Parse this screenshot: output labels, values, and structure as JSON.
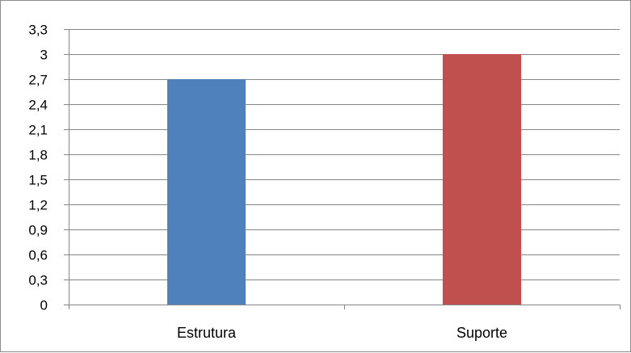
{
  "chart_data": {
    "type": "bar",
    "categories": [
      "Estrutura",
      "Suporte"
    ],
    "values": [
      2.7,
      3.0
    ],
    "colors": [
      "#4f81bd",
      "#c0504d"
    ],
    "ylim": [
      0,
      3.3
    ],
    "yticks": [
      "0",
      "0,3",
      "0,6",
      "0,9",
      "1,2",
      "1,5",
      "1,8",
      "2,1",
      "2,4",
      "2,7",
      "3",
      "3,3"
    ],
    "ytick_values": [
      0,
      0.3,
      0.6,
      0.9,
      1.2,
      1.5,
      1.8,
      2.1,
      2.4,
      2.7,
      3.0,
      3.3
    ],
    "title": "",
    "xlabel": "",
    "ylabel": "",
    "grid": true,
    "legend": "none"
  }
}
